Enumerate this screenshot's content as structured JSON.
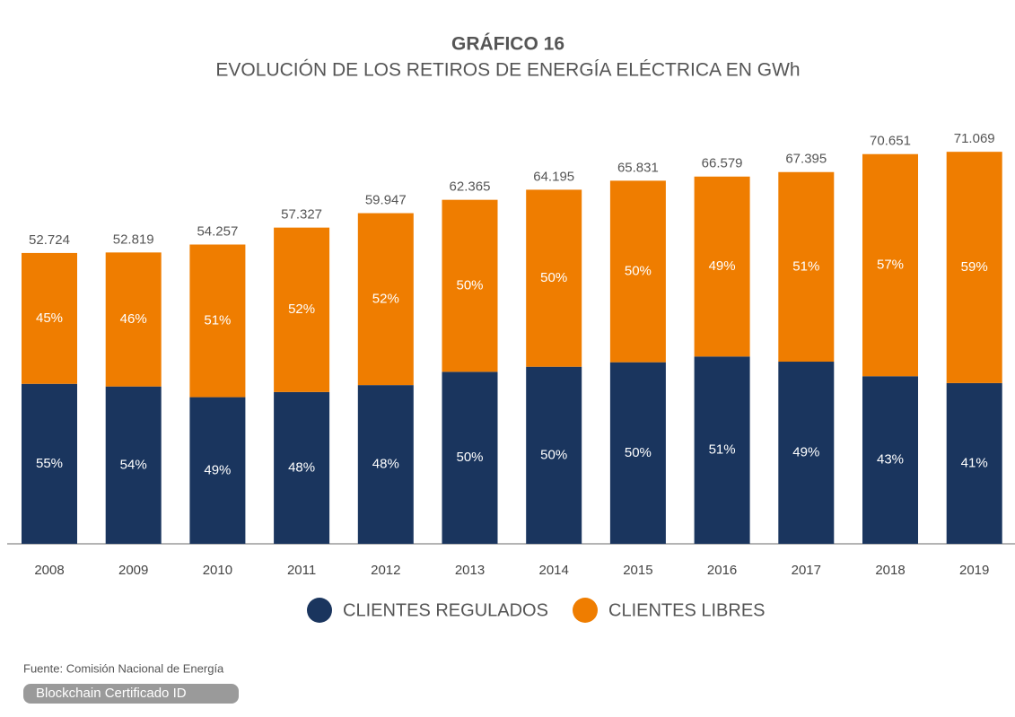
{
  "chart_data": {
    "type": "stacked_bar",
    "title": "GRÁFICO 16",
    "subtitle": "EVOLUCIÓN DE LOS RETIROS DE ENERGÍA ELÉCTRICA EN GWh",
    "categories": [
      "2008",
      "2009",
      "2010",
      "2011",
      "2012",
      "2013",
      "2014",
      "2015",
      "2016",
      "2017",
      "2018",
      "2019"
    ],
    "series": [
      {
        "name": "CLIENTES REGULADOS",
        "color": "#1a355e",
        "values": [
          55,
          54,
          49,
          48,
          48,
          50,
          50,
          50,
          51,
          49,
          43,
          41
        ],
        "value_labels": [
          "55%",
          "54%",
          "49%",
          "48%",
          "48%",
          "50%",
          "50%",
          "50%",
          "51%",
          "49%",
          "43%",
          "41%"
        ]
      },
      {
        "name": "CLIENTES LIBRES",
        "color": "#ef7d00",
        "values": [
          45,
          46,
          51,
          52,
          52,
          50,
          50,
          50,
          49,
          51,
          57,
          59
        ],
        "value_labels": [
          "45%",
          "46%",
          "51%",
          "52%",
          "52%",
          "50%",
          "50%",
          "50%",
          "49%",
          "51%",
          "57%",
          "59%"
        ]
      }
    ],
    "totals": {
      "values": [
        52724,
        52819,
        54257,
        57327,
        59947,
        62365,
        64195,
        65831,
        66579,
        67395,
        70651,
        71069
      ],
      "value_labels": [
        "52.724",
        "52.819",
        "54.257",
        "57.327",
        "59.947",
        "62.365",
        "64.195",
        "65.831",
        "66.579",
        "67.395",
        "70.651",
        "71.069"
      ]
    },
    "ylim": [
      0,
      75000
    ],
    "source": "Fuente: Comisión Nacional de Energía",
    "badge": "Blockchain Certificado ID"
  }
}
